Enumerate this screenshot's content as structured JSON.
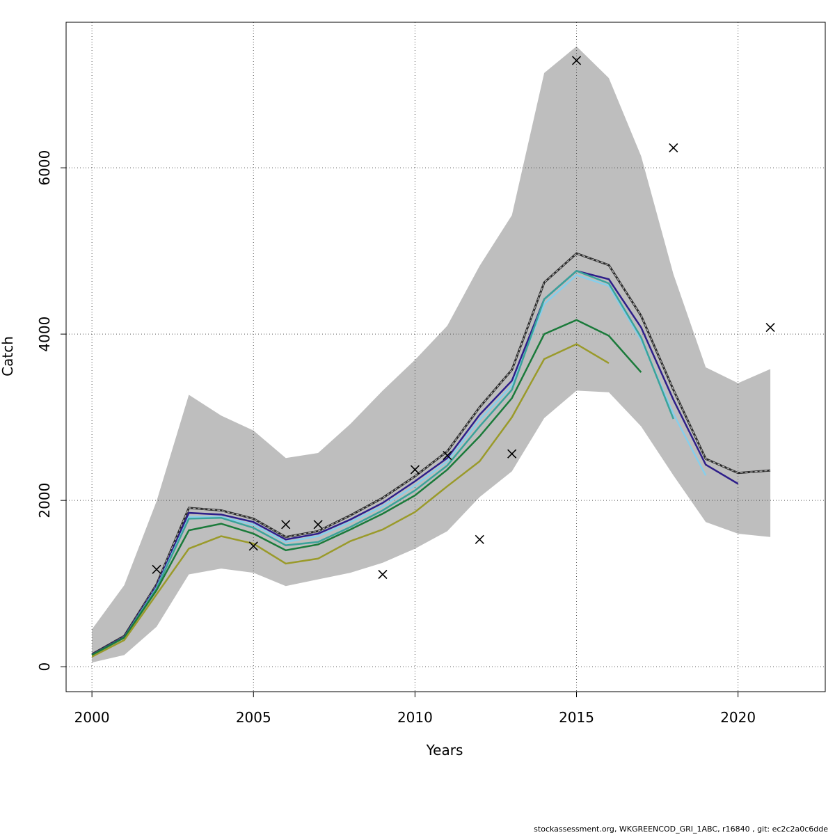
{
  "chart_data": {
    "type": "line",
    "title": "",
    "xlabel": "Years",
    "ylabel": "Catch",
    "xlim": [
      1999.2,
      2022.7
    ],
    "ylim": [
      -300,
      7750
    ],
    "x_ticks": [
      2000,
      2005,
      2010,
      2015,
      2020
    ],
    "y_ticks": [
      0,
      2000,
      4000,
      6000
    ],
    "x_tick_labels": [
      "2000",
      "2005",
      "2010",
      "2015",
      "2020"
    ],
    "y_tick_labels": [
      "0",
      "2000",
      "4000",
      "6000"
    ],
    "grid": true,
    "legend": "none",
    "confidence_band": {
      "x": [
        2000,
        2001,
        2002,
        2003,
        2004,
        2005,
        2006,
        2007,
        2008,
        2009,
        2010,
        2011,
        2012,
        2013,
        2014,
        2015,
        2016,
        2017,
        2018,
        2019,
        2020,
        2021
      ],
      "upper": [
        450,
        980,
        1990,
        3270,
        3020,
        2840,
        2510,
        2570,
        2920,
        3320,
        3690,
        4100,
        4820,
        5430,
        7140,
        7460,
        7080,
        6140,
        4720,
        3600,
        3410,
        3580
      ],
      "lower": [
        50,
        140,
        480,
        1110,
        1180,
        1130,
        970,
        1050,
        1130,
        1250,
        1420,
        1630,
        2040,
        2350,
        2990,
        3320,
        3300,
        2890,
        2300,
        1740,
        1600,
        1560
      ],
      "color": "#bebebe"
    },
    "series": [
      {
        "color": "#2b2b2b",
        "dashed": true,
        "x": [
          2000,
          2001,
          2002,
          2003,
          2004,
          2005,
          2006,
          2007,
          2008,
          2009,
          2010,
          2011,
          2012,
          2013,
          2014,
          2015,
          2016,
          2017,
          2018,
          2019,
          2020,
          2021
        ],
        "values": [
          150,
          370,
          990,
          1910,
          1880,
          1780,
          1560,
          1630,
          1820,
          2030,
          2290,
          2590,
          3120,
          3570,
          4620,
          4970,
          4830,
          4220,
          3330,
          2500,
          2330,
          2360
        ]
      },
      {
        "color": "#2e1e8a",
        "x": [
          2000,
          2001,
          2002,
          2003,
          2004,
          2005,
          2006,
          2007,
          2008,
          2009,
          2010,
          2011,
          2012,
          2013,
          2014,
          2015,
          2016,
          2017,
          2018,
          2019,
          2020
        ],
        "values": [
          145,
          360,
          970,
          1850,
          1830,
          1740,
          1530,
          1600,
          1770,
          1970,
          2230,
          2510,
          3030,
          3440,
          4420,
          4760,
          4660,
          4080,
          3210,
          2430,
          2200
        ]
      },
      {
        "color": "#87ceeb",
        "x": [
          2000,
          2001,
          2002,
          2003,
          2004,
          2005,
          2006,
          2007,
          2008,
          2009,
          2010,
          2011,
          2012,
          2013,
          2014,
          2015,
          2016,
          2017,
          2018,
          2019
        ],
        "values": [
          140,
          350,
          950,
          1800,
          1800,
          1710,
          1500,
          1570,
          1740,
          1930,
          2180,
          2470,
          2970,
          3380,
          4360,
          4710,
          4580,
          3930,
          3040,
          2300
        ]
      },
      {
        "color": "#3aa39a",
        "x": [
          2000,
          2001,
          2002,
          2003,
          2004,
          2005,
          2006,
          2007,
          2008,
          2009,
          2010,
          2011,
          2012,
          2013,
          2014,
          2015,
          2016,
          2017,
          2018
        ],
        "values": [
          140,
          350,
          940,
          1780,
          1790,
          1670,
          1460,
          1500,
          1680,
          1880,
          2120,
          2420,
          2890,
          3330,
          4420,
          4760,
          4610,
          3960,
          2980
        ]
      },
      {
        "color": "#1a7a3a",
        "x": [
          2000,
          2001,
          2002,
          2003,
          2004,
          2005,
          2006,
          2007,
          2008,
          2009,
          2010,
          2011,
          2012,
          2013,
          2014,
          2015,
          2016,
          2017
        ],
        "values": [
          140,
          350,
          920,
          1640,
          1720,
          1600,
          1400,
          1470,
          1650,
          1840,
          2060,
          2370,
          2770,
          3230,
          4000,
          4170,
          3980,
          3540
        ]
      },
      {
        "color": "#9a9a2a",
        "x": [
          2000,
          2001,
          2002,
          2003,
          2004,
          2005,
          2006,
          2007,
          2008,
          2009,
          2010,
          2011,
          2012,
          2013,
          2014,
          2015,
          2016
        ],
        "values": [
          120,
          320,
          870,
          1420,
          1570,
          1480,
          1240,
          1300,
          1510,
          1650,
          1860,
          2170,
          2470,
          3000,
          3700,
          3880,
          3650
        ]
      }
    ],
    "observations": {
      "marker": "x",
      "x": [
        2002,
        2005,
        2006,
        2007,
        2009,
        2010,
        2011,
        2012,
        2013,
        2015,
        2018,
        2021
      ],
      "values": [
        1170,
        1450,
        1710,
        1710,
        1110,
        2370,
        2540,
        1530,
        2560,
        7290,
        6240,
        4080
      ]
    }
  },
  "footer": "stockassessment.org, WKGREENCOD_GRI_1ABC, r16840 , git: ec2c2a0c6dde"
}
